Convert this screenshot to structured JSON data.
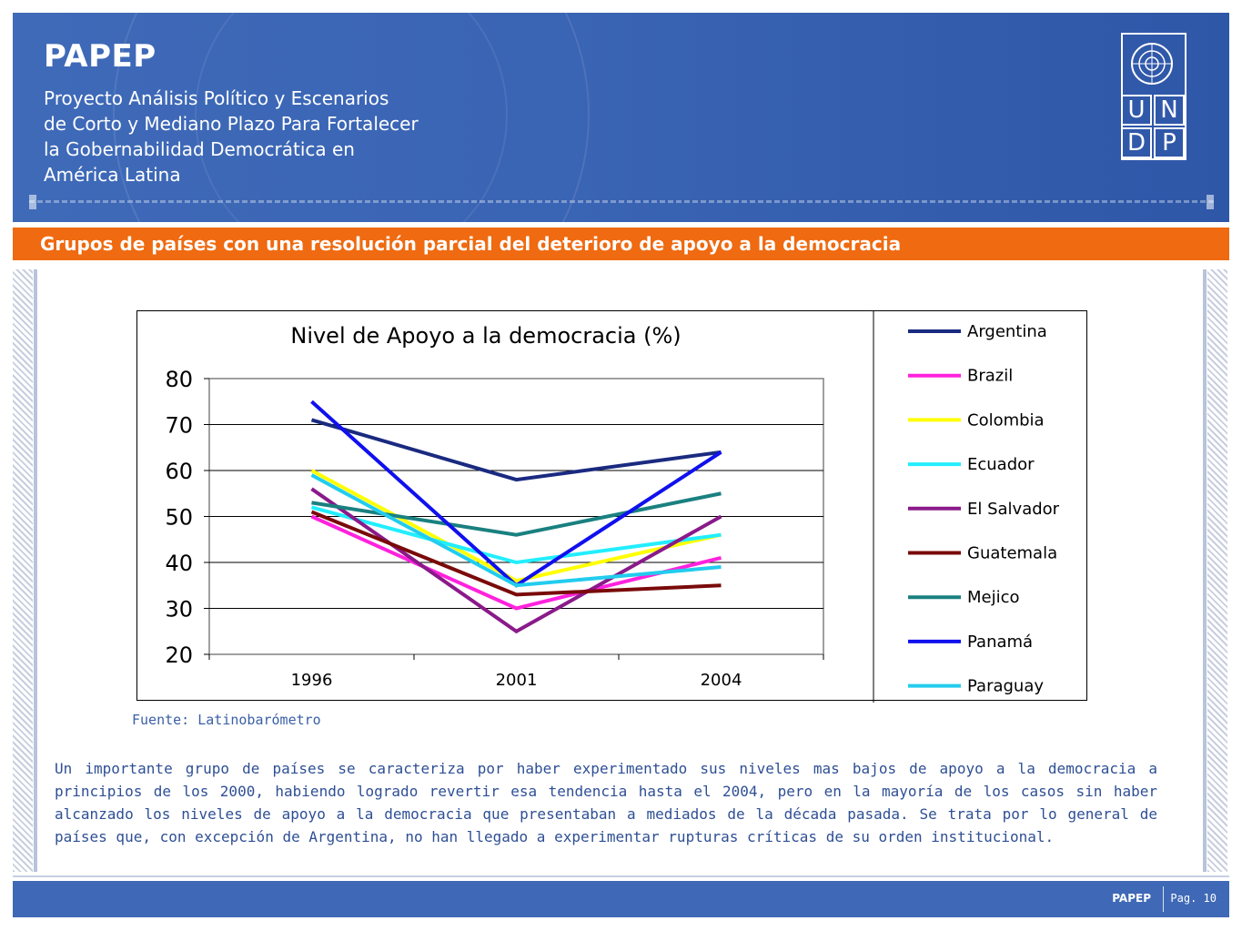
{
  "header": {
    "brand": "PAPEP",
    "subtitle_lines": [
      "Proyecto Análisis Político y Escenarios",
      "de Corto y Mediano Plazo Para Fortalecer",
      "la Gobernabilidad Democrática en",
      "América Latina"
    ],
    "logo_letters": [
      "U",
      "N",
      "D",
      "P"
    ],
    "colors": {
      "banner": "#3a64b4",
      "title_bar": "#ef6a10"
    }
  },
  "section_title": "Grupos de países con una resolución parcial del deterioro de apoyo a la democracia",
  "chart_data": {
    "type": "line",
    "title": "Nivel de Apoyo a la democracia (%)",
    "x": [
      "1996",
      "2001",
      "2004"
    ],
    "ylim": [
      20,
      80
    ],
    "yticks": [
      20,
      30,
      40,
      50,
      60,
      70,
      80
    ],
    "grid": true,
    "legend_placement": "right",
    "series": [
      {
        "name": "Argentina",
        "color": "#1a2a80",
        "values": [
          71,
          58,
          64
        ]
      },
      {
        "name": "Brazil",
        "color": "#ff22dd",
        "values": [
          50,
          30,
          41
        ]
      },
      {
        "name": "Colombia",
        "color": "#ffff00",
        "values": [
          60,
          36,
          46
        ]
      },
      {
        "name": "Ecuador",
        "color": "#22eeff",
        "values": [
          52,
          40,
          46
        ]
      },
      {
        "name": "El Salvador",
        "color": "#8a1a8a",
        "values": [
          56,
          25,
          50
        ]
      },
      {
        "name": "Guatemala",
        "color": "#7a0a0a",
        "values": [
          51,
          33,
          35
        ]
      },
      {
        "name": "Mejico",
        "color": "#1a8080",
        "values": [
          53,
          46,
          55
        ]
      },
      {
        "name": "Panamá",
        "color": "#1010ee",
        "values": [
          75,
          35,
          64
        ]
      },
      {
        "name": "Paraguay",
        "color": "#22ccee",
        "values": [
          59,
          35,
          39
        ]
      }
    ]
  },
  "source": "Fuente: Latinobarómetro",
  "body": "Un importante grupo de países se caracteriza por haber experimentado sus niveles mas bajos de apoyo a la democracia a principios de los 2000, habiendo logrado revertir esa tendencia hasta el 2004, pero en la mayoría de los casos sin haber alcanzado los niveles de apoyo a la democracia que presentaban a mediados de la década pasada. Se trata por lo general de países que, con excepción de Argentina, no han llegado a experimentar rupturas críticas de su orden institucional.",
  "footer": {
    "brand": "PAPEP",
    "page": "Pag. 10"
  }
}
